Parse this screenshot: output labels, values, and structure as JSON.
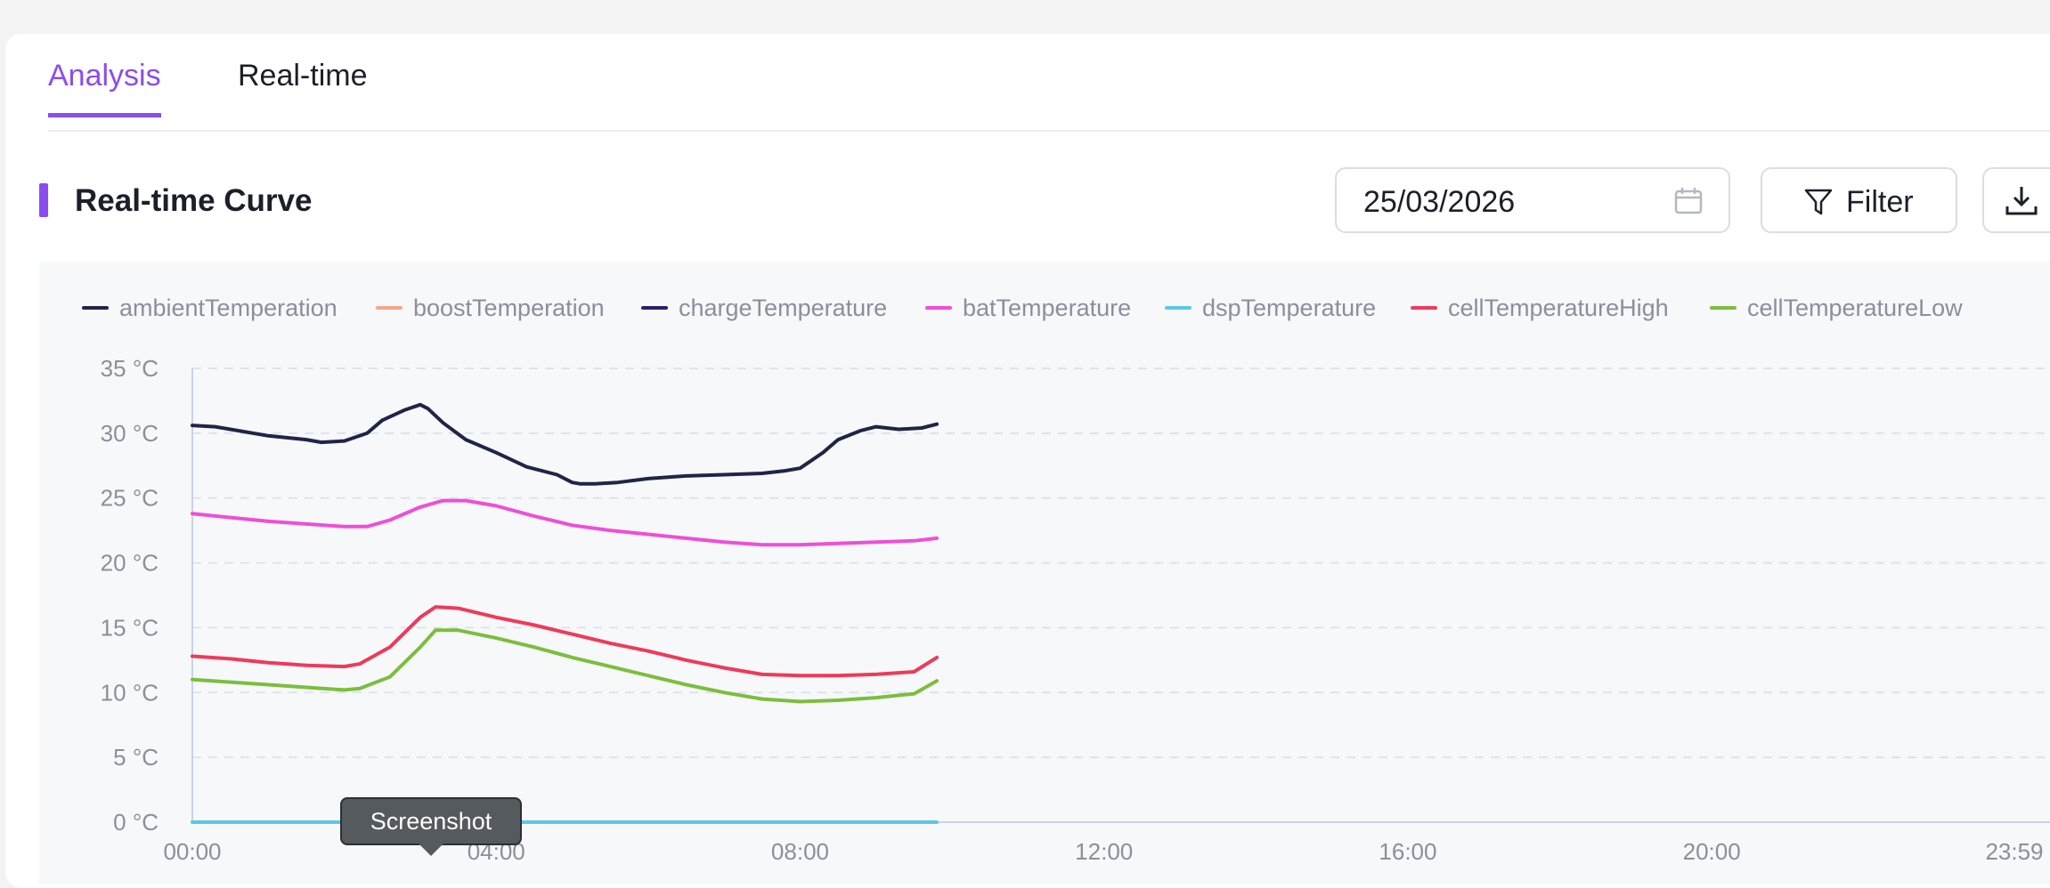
{
  "tabs": [
    {
      "label": "Analysis",
      "active": true
    },
    {
      "label": "Real-time",
      "active": false
    }
  ],
  "section": {
    "title": "Real-time Curve"
  },
  "toolbar": {
    "date_value": "25/03/2026",
    "filter_label": "Filter",
    "calendar_icon": "calendar-icon",
    "filter_icon": "funnel-icon",
    "download_icon": "download-icon"
  },
  "tooltip": {
    "text": "Screenshot"
  },
  "colors": {
    "accent": "#8b4cf0"
  },
  "chart_data": {
    "type": "line",
    "title": "",
    "xlabel": "",
    "ylabel": "",
    "x_range_hours": [
      0,
      23.9833
    ],
    "ylim": [
      0,
      35
    ],
    "y_ticks": [
      0,
      5,
      10,
      15,
      20,
      25,
      30,
      35
    ],
    "y_unit": "°C",
    "x_tick_labels": [
      "00:00",
      "04:00",
      "08:00",
      "12:00",
      "16:00",
      "20:00",
      "23:59"
    ],
    "x_tick_hours": [
      0,
      4,
      8,
      12,
      16,
      20,
      23.9833
    ],
    "grid": "horizontal dashed",
    "legend_position": "top",
    "series": [
      {
        "name": "ambientTemperation",
        "color": "#1f2547",
        "x": [
          0,
          0.3,
          0.5,
          1,
          1.5,
          1.7,
          2,
          2.3,
          2.5,
          2.8,
          3,
          3.1,
          3.3,
          3.6,
          4,
          4.4,
          4.8,
          5,
          5.1,
          5.3,
          5.6,
          6,
          6.5,
          7,
          7.5,
          7.8,
          8,
          8.3,
          8.5,
          8.8,
          9,
          9.3,
          9.6,
          9.8
        ],
        "y": [
          30.6,
          30.5,
          30.3,
          29.8,
          29.5,
          29.3,
          29.4,
          30,
          31,
          31.8,
          32.2,
          31.9,
          30.8,
          29.5,
          28.5,
          27.4,
          26.8,
          26.2,
          26.1,
          26.1,
          26.2,
          26.5,
          26.7,
          26.8,
          26.9,
          27.1,
          27.3,
          28.5,
          29.5,
          30.2,
          30.5,
          30.3,
          30.4,
          30.7
        ]
      },
      {
        "name": "boostTemperation",
        "color": "#f0a88a",
        "x": [],
        "y": []
      },
      {
        "name": "chargeTemperature",
        "color": "#2a1f6b",
        "x": [],
        "y": []
      },
      {
        "name": "batTemperature",
        "color": "#ee4fd6",
        "x": [],
        "y": [],
        "x_pts": [
          0,
          0.5,
          1,
          1.5,
          2,
          2.3,
          2.6,
          3,
          3.3,
          3.6,
          4,
          4.5,
          5,
          5.5,
          6,
          6.5,
          7,
          7.5,
          8,
          8.5,
          9,
          9.5,
          9.8
        ],
        "y_pts": [
          23.8,
          23.5,
          23.2,
          23,
          22.8,
          22.8,
          23.3,
          24.3,
          24.8,
          24.8,
          24.4,
          23.6,
          22.9,
          22.5,
          22.2,
          21.9,
          21.6,
          21.4,
          21.4,
          21.5,
          21.6,
          21.7,
          21.9
        ]
      },
      {
        "name": "dspTemperature",
        "color": "#5cc6e8",
        "x": [
          0,
          9.8
        ],
        "y": [
          0,
          0
        ]
      },
      {
        "name": "cellTemperatureHigh",
        "color": "#ee3a5a",
        "x": [
          0,
          0.5,
          1,
          1.5,
          2,
          2.2,
          2.6,
          3,
          3.2,
          3.5,
          4,
          4.5,
          5,
          5.5,
          6,
          6.5,
          7,
          7.5,
          8,
          8.5,
          9,
          9.5,
          9.8
        ],
        "y": [
          12.8,
          12.6,
          12.3,
          12.1,
          12,
          12.2,
          13.5,
          15.8,
          16.6,
          16.5,
          15.8,
          15.2,
          14.5,
          13.8,
          13.2,
          12.5,
          11.9,
          11.4,
          11.3,
          11.3,
          11.4,
          11.6,
          12.7
        ]
      },
      {
        "name": "cellTemperatureLow",
        "color": "#7cbe3c",
        "x": [
          0,
          0.5,
          1,
          1.5,
          2,
          2.2,
          2.6,
          3,
          3.2,
          3.5,
          4,
          4.5,
          5,
          5.5,
          6,
          6.5,
          7,
          7.5,
          8,
          8.5,
          9,
          9.5,
          9.8
        ],
        "y": [
          11,
          10.8,
          10.6,
          10.4,
          10.2,
          10.3,
          11.2,
          13.5,
          14.8,
          14.8,
          14.2,
          13.5,
          12.7,
          12,
          11.3,
          10.6,
          10,
          9.5,
          9.3,
          9.4,
          9.6,
          9.9,
          10.9
        ]
      }
    ]
  }
}
